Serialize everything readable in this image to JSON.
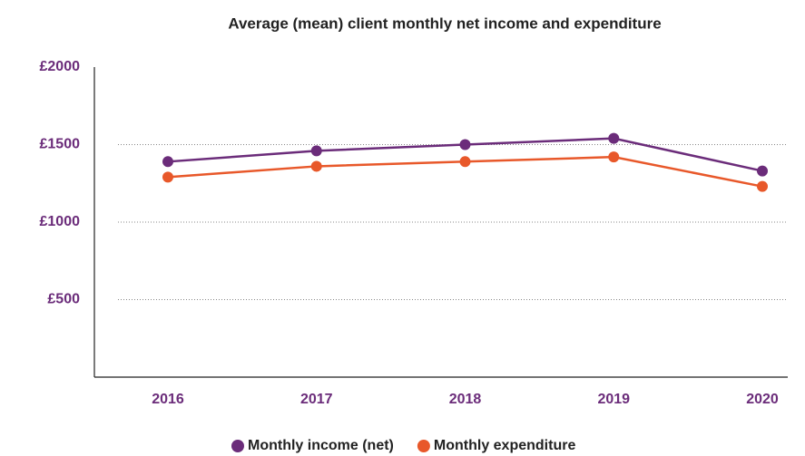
{
  "chart_data": {
    "type": "line",
    "title": "Average (mean) client monthly net income and expenditure",
    "categories": [
      "2016",
      "2017",
      "2018",
      "2019",
      "2020"
    ],
    "series": [
      {
        "name": "Monthly income (net)",
        "color": "#6b2c7a",
        "values": [
          1390,
          1460,
          1500,
          1540,
          1330
        ]
      },
      {
        "name": "Monthly expenditure",
        "color": "#e8582a",
        "values": [
          1290,
          1360,
          1390,
          1420,
          1230
        ]
      }
    ],
    "ylim": [
      0,
      2000
    ],
    "yticks": [
      {
        "value": 500,
        "label": "£500"
      },
      {
        "value": 1000,
        "label": "£1000"
      },
      {
        "value": 1500,
        "label": "£1500"
      },
      {
        "value": 2000,
        "label": "£2000"
      }
    ],
    "grid": true,
    "legend": "bottom"
  }
}
